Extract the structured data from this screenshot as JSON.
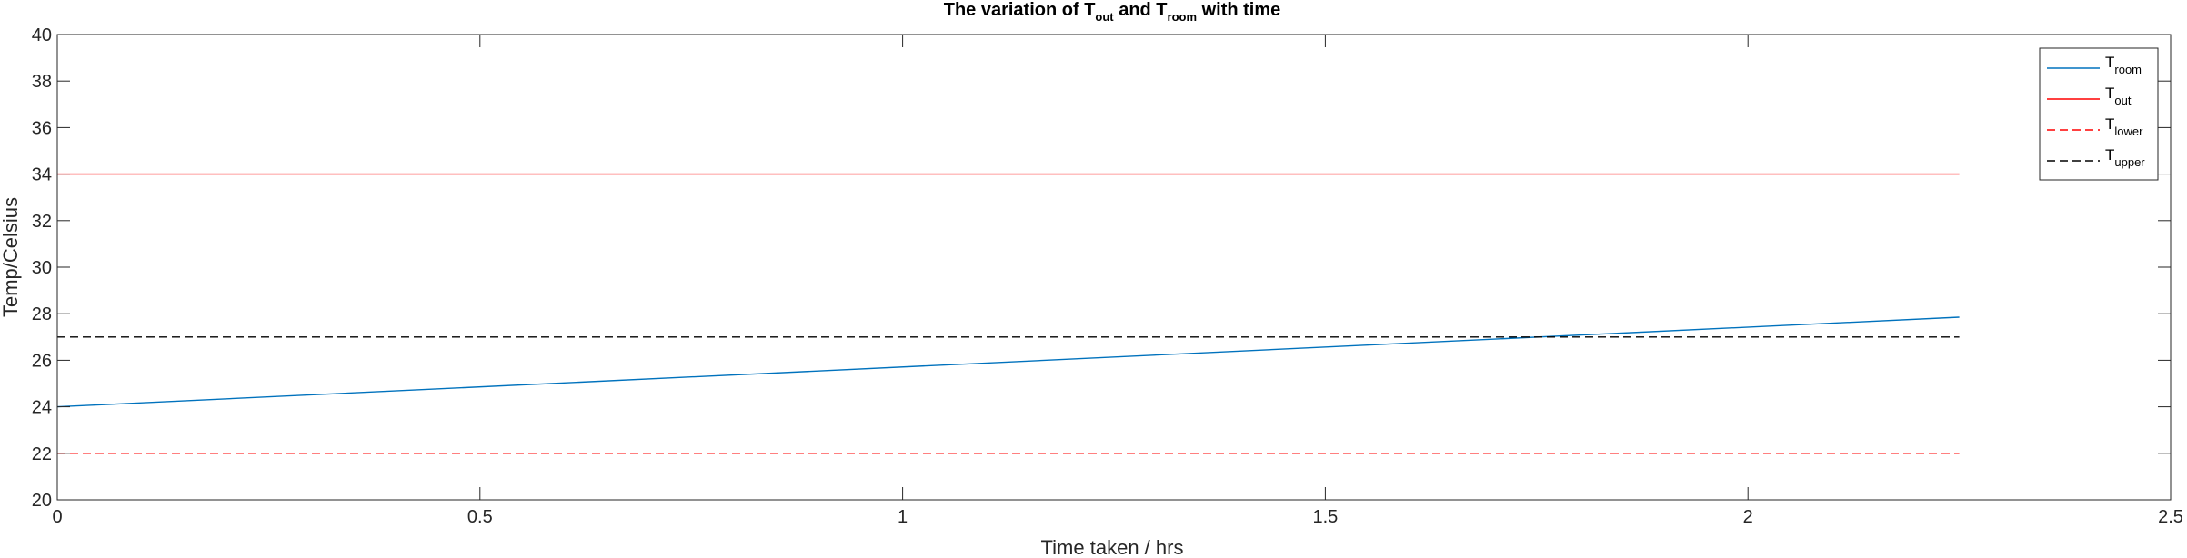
{
  "chart_data": {
    "type": "line",
    "title": {
      "prefix": "The variation of T",
      "sub1": "out",
      "mid": " and T",
      "sub2": "room",
      "suffix": " with time"
    },
    "xlabel": "Time taken /  hrs",
    "ylabel": "Temp/Celsius",
    "xlim": [
      0,
      2.5
    ],
    "ylim": [
      20,
      40
    ],
    "xticks": [
      0,
      0.5,
      1,
      1.5,
      2,
      2.5
    ],
    "xtick_labels": [
      "0",
      "0.5",
      "1",
      "1.5",
      "2",
      "2.5"
    ],
    "yticks": [
      20,
      22,
      24,
      26,
      28,
      30,
      32,
      34,
      36,
      38,
      40
    ],
    "ytick_labels": [
      "20",
      "22",
      "24",
      "26",
      "28",
      "30",
      "32",
      "34",
      "36",
      "38",
      "40"
    ],
    "grid": false,
    "legend_position": "top-right",
    "series": [
      {
        "name_main": "T",
        "name_sub": "room",
        "color": "#0072BD",
        "dash": "solid",
        "x": [
          0,
          2.25
        ],
        "y": [
          24,
          27.85
        ]
      },
      {
        "name_main": "T",
        "name_sub": "out",
        "color": "#FF0000",
        "dash": "solid",
        "x": [
          0,
          2.25
        ],
        "y": [
          34,
          34
        ]
      },
      {
        "name_main": "T",
        "name_sub": "lower",
        "color": "#FF0000",
        "dash": "dashed",
        "x": [
          0,
          2.25
        ],
        "y": [
          22,
          22
        ]
      },
      {
        "name_main": "T",
        "name_sub": "upper",
        "color": "#000000",
        "dash": "dashed",
        "x": [
          0,
          2.25
        ],
        "y": [
          27,
          27
        ]
      }
    ]
  }
}
